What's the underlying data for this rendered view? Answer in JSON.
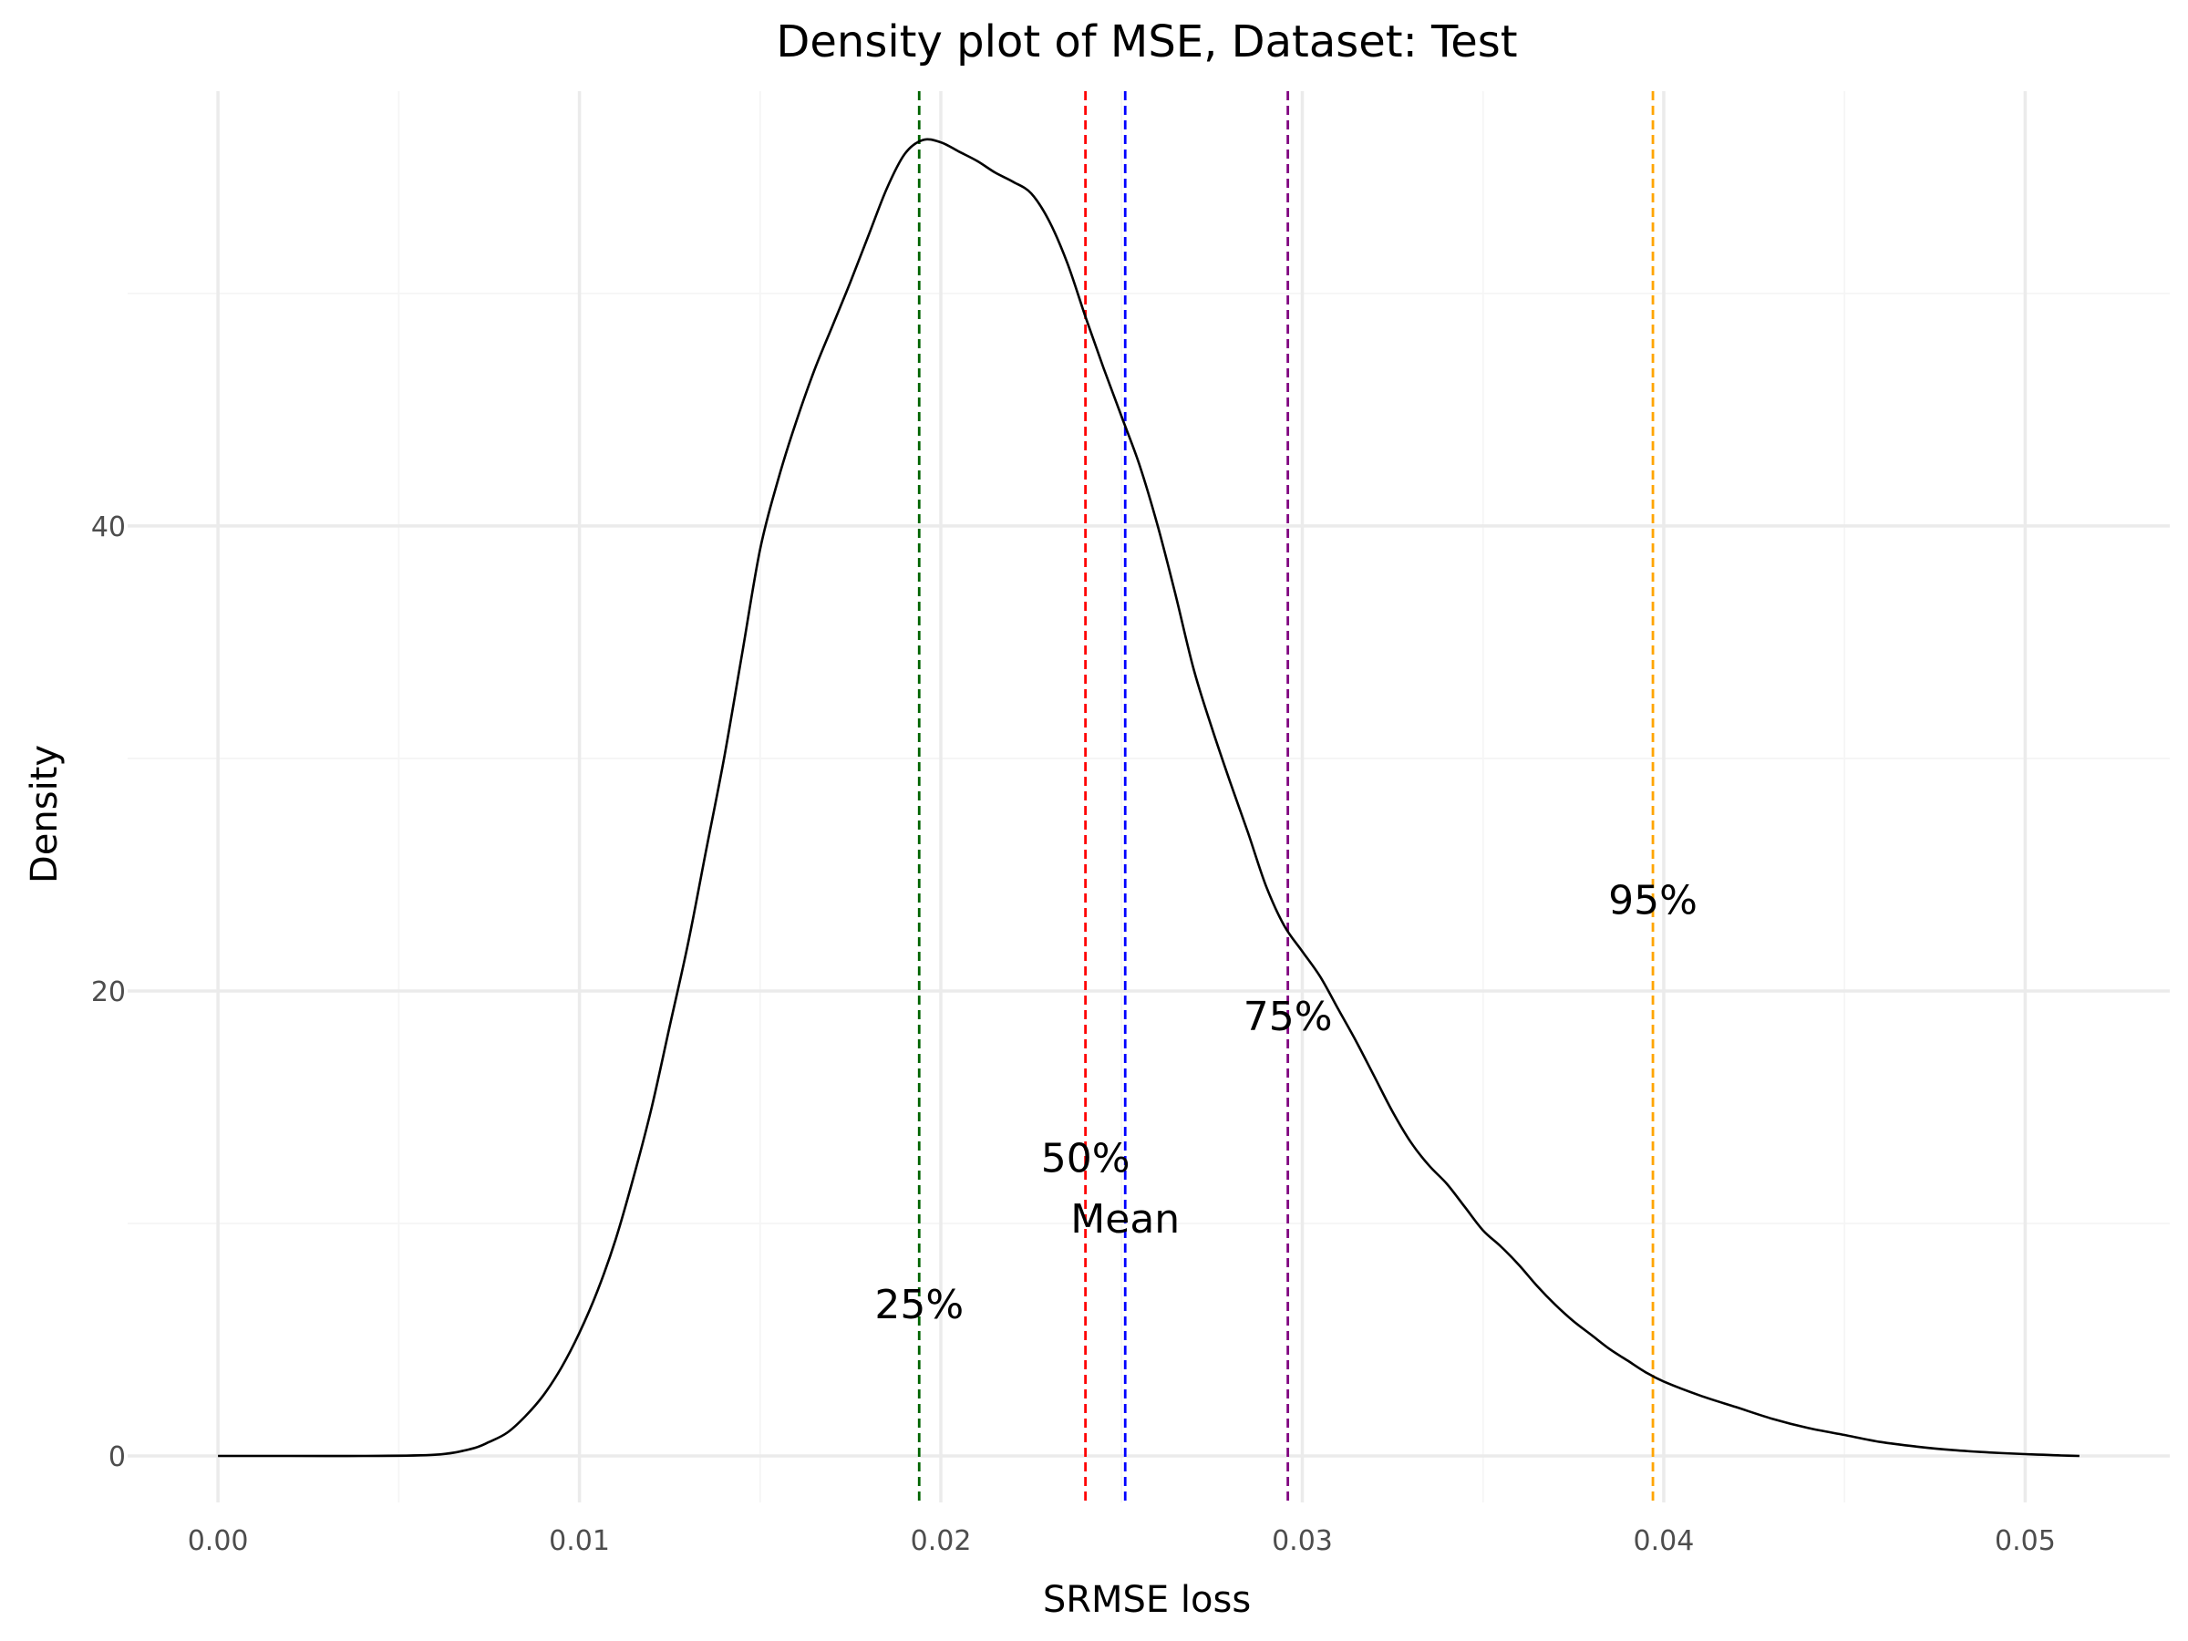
{
  "chart_data": {
    "type": "line",
    "title": "Density plot of MSE, Dataset: Test",
    "xlabel": "SRMSE loss",
    "ylabel": "Density",
    "xlim": [
      -0.0025,
      0.054
    ],
    "ylim": [
      -2.0,
      58.7
    ],
    "x_ticks": [
      0.0,
      0.01,
      0.02,
      0.03,
      0.04,
      0.05
    ],
    "x_tick_labels": [
      "0.00",
      "0.01",
      "0.02",
      "0.03",
      "0.04",
      "0.05"
    ],
    "y_ticks": [
      0,
      20,
      40
    ],
    "y_tick_labels": [
      "0",
      "20",
      "40"
    ],
    "grid": true,
    "series": [
      {
        "color": "#000000",
        "x": [
          0.0,
          0.002,
          0.004,
          0.006,
          0.007,
          0.0075,
          0.008,
          0.0085,
          0.009,
          0.0095,
          0.01,
          0.0105,
          0.011,
          0.0115,
          0.012,
          0.0125,
          0.013,
          0.0135,
          0.014,
          0.0145,
          0.015,
          0.0155,
          0.016,
          0.0165,
          0.017,
          0.0175,
          0.018,
          0.0185,
          0.019,
          0.0195,
          0.02,
          0.0205,
          0.021,
          0.0215,
          0.022,
          0.0225,
          0.023,
          0.0235,
          0.024,
          0.0245,
          0.025,
          0.0255,
          0.026,
          0.0265,
          0.027,
          0.0275,
          0.028,
          0.0285,
          0.029,
          0.0295,
          0.03,
          0.0305,
          0.031,
          0.0315,
          0.032,
          0.0325,
          0.033,
          0.0335,
          0.034,
          0.0345,
          0.035,
          0.0355,
          0.036,
          0.0365,
          0.037,
          0.0375,
          0.038,
          0.0385,
          0.039,
          0.0395,
          0.04,
          0.041,
          0.042,
          0.043,
          0.044,
          0.045,
          0.046,
          0.047,
          0.048,
          0.049,
          0.05,
          0.0505,
          0.051,
          0.0515
        ],
        "y": [
          0.0,
          0.0,
          0.0,
          0.05,
          0.3,
          0.6,
          1.0,
          1.7,
          2.6,
          3.8,
          5.3,
          7.1,
          9.3,
          12.0,
          15.0,
          18.5,
          22.0,
          26.0,
          30.0,
          34.5,
          39.0,
          42.0,
          44.5,
          46.7,
          48.6,
          50.5,
          52.5,
          54.5,
          56.0,
          56.6,
          56.5,
          56.1,
          55.7,
          55.2,
          54.8,
          54.3,
          53.1,
          51.3,
          49.0,
          46.8,
          44.7,
          42.6,
          40.0,
          37.0,
          33.8,
          31.3,
          29.0,
          26.8,
          24.5,
          22.8,
          21.7,
          20.6,
          19.2,
          17.8,
          16.3,
          14.8,
          13.5,
          12.5,
          11.7,
          10.7,
          9.7,
          9.0,
          8.2,
          7.3,
          6.5,
          5.8,
          5.2,
          4.6,
          4.1,
          3.6,
          3.2,
          2.6,
          2.1,
          1.6,
          1.2,
          0.9,
          0.6,
          0.4,
          0.25,
          0.15,
          0.08,
          0.05,
          0.02,
          0.0
        ]
      }
    ],
    "vlines": [
      {
        "label": "25%",
        "x": 0.0194,
        "color": "#006400",
        "label_y": 6.5
      },
      {
        "label": "50%",
        "x": 0.024,
        "color": "#ff0000",
        "label_y": 12.8
      },
      {
        "label": "Mean",
        "x": 0.0251,
        "color": "#0000ff",
        "label_y": 10.2
      },
      {
        "label": "75%",
        "x": 0.0296,
        "color": "#800080",
        "label_y": 18.9
      },
      {
        "label": "95%",
        "x": 0.0397,
        "color": "#ffa500",
        "label_y": 23.9
      }
    ]
  }
}
